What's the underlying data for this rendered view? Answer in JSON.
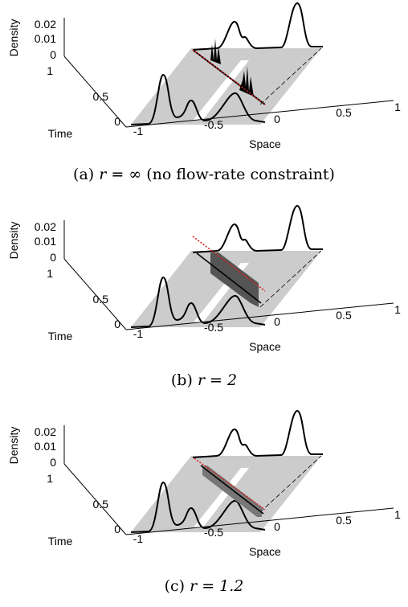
{
  "chart_data": [
    {
      "type": "area",
      "caption_prefix": "(a)",
      "caption_math": "r = ∞",
      "caption_suffix": "(no flow-rate constraint)",
      "xlabel": "Space",
      "ylabel": "Time",
      "zlabel": "Density",
      "xticks": [
        "-1",
        "-0.5",
        "0",
        "0.5",
        "1"
      ],
      "yticks": [
        "0",
        "0.5",
        "1"
      ],
      "zticks": [
        "0",
        "0.01",
        "0.02"
      ],
      "xlim": [
        -1,
        1
      ],
      "ylim": [
        0,
        1
      ],
      "zlim": [
        0,
        0.025
      ],
      "flow_line": "red-dotted",
      "fill_color": "#cccccc",
      "flow_color": "#000000"
    },
    {
      "type": "area",
      "caption_prefix": "(b)",
      "caption_math": "r = 2",
      "caption_suffix": "",
      "xlabel": "Space",
      "ylabel": "Time",
      "zlabel": "Density",
      "xticks": [
        "-1",
        "-0.5",
        "0",
        "0.5",
        "1"
      ],
      "yticks": [
        "0",
        "0.5",
        "1"
      ],
      "zticks": [
        "0",
        "0.01",
        "0.02"
      ],
      "xlim": [
        -1,
        1
      ],
      "ylim": [
        0,
        1
      ],
      "zlim": [
        0,
        0.025
      ],
      "flow_line": "red-dotted",
      "fill_color": "#cccccc",
      "flow_color": "#555555"
    },
    {
      "type": "area",
      "caption_prefix": "(c)",
      "caption_math": "r = 1.2",
      "caption_suffix": "",
      "xlabel": "Space",
      "ylabel": "Time",
      "zlabel": "Density",
      "xticks": [
        "-1",
        "-0.5",
        "0",
        "0.5",
        "1"
      ],
      "yticks": [
        "0",
        "0.5",
        "1"
      ],
      "zticks": [
        "0",
        "0.01",
        "0.02"
      ],
      "xlim": [
        -1,
        1
      ],
      "ylim": [
        0,
        1
      ],
      "zlim": [
        0,
        0.025
      ],
      "flow_line": "red-dotted",
      "fill_color": "#cccccc",
      "flow_color": "#777777"
    }
  ]
}
